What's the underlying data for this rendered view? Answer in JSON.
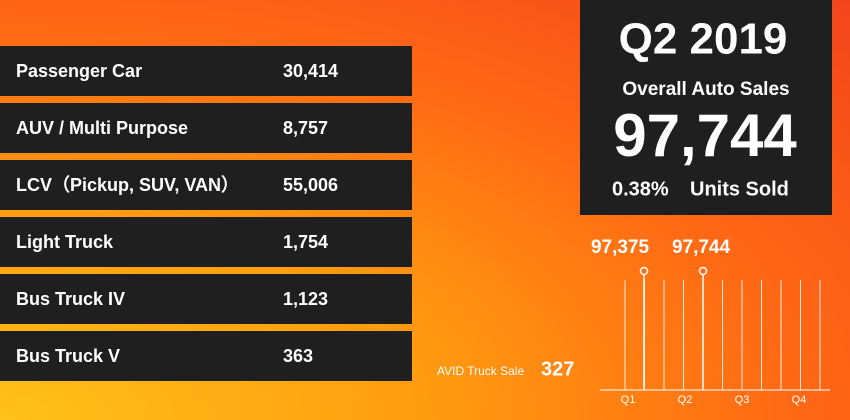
{
  "rows": [
    {
      "label": "Passenger Car",
      "value": "30,414"
    },
    {
      "label": "AUV / Multi Purpose",
      "value": "8,757"
    },
    {
      "label": "LCV（Pickup, SUV, VAN）",
      "value": "55,006"
    },
    {
      "label": "Light Truck",
      "value": "1,754"
    },
    {
      "label": "Bus Truck IV",
      "value": "1,123"
    },
    {
      "label": "Bus Truck V",
      "value": "363"
    }
  ],
  "summary": {
    "period": "Q2 2019",
    "heading": "Overall Auto Sales",
    "total": "97,744",
    "growth": "0.38%",
    "growth_label": "Units Sold"
  },
  "trend": {
    "points": [
      {
        "value": 97375,
        "label": "97,375"
      },
      {
        "value": 97744,
        "label": "97,744"
      }
    ],
    "quarters": [
      "Q1",
      "Q2",
      "Q3",
      "Q4"
    ]
  },
  "note": {
    "label": "AVID Truck Sale",
    "value": "327"
  }
}
